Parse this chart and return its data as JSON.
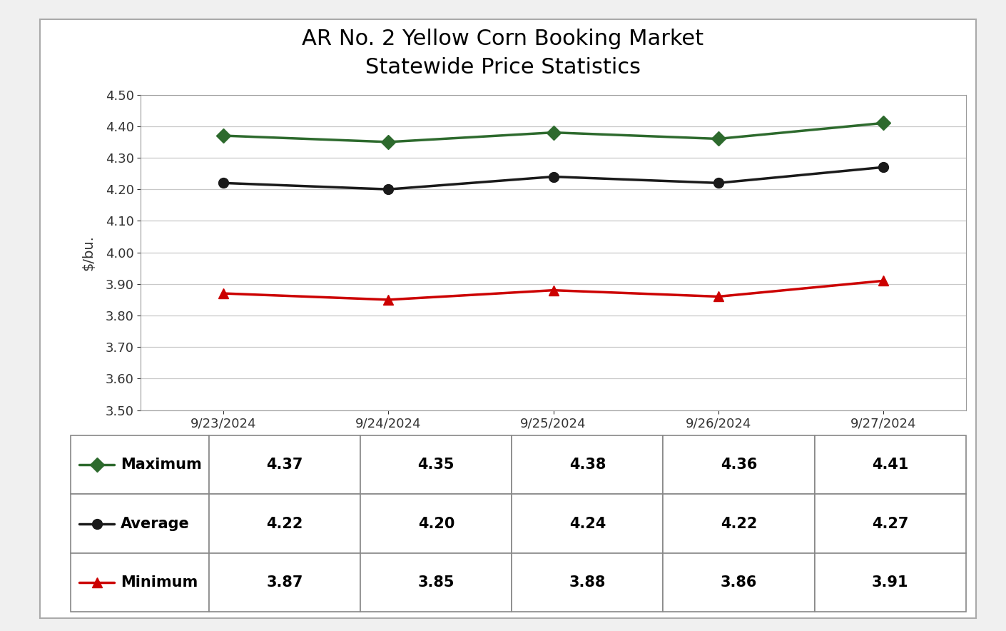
{
  "title_line1": "AR No. 2 Yellow Corn Booking Market",
  "title_line2": "Statewide Price Statistics",
  "ylabel": "$/bu.",
  "dates": [
    "9/23/2024",
    "9/24/2024",
    "9/25/2024",
    "9/26/2024",
    "9/27/2024"
  ],
  "maximum": [
    4.37,
    4.35,
    4.38,
    4.36,
    4.41
  ],
  "average": [
    4.22,
    4.2,
    4.24,
    4.22,
    4.27
  ],
  "minimum": [
    3.87,
    3.85,
    3.88,
    3.86,
    3.91
  ],
  "max_color": "#2d6a2d",
  "avg_color": "#1a1a1a",
  "min_color": "#cc0000",
  "ylim": [
    3.5,
    4.5
  ],
  "yticks": [
    3.5,
    3.6,
    3.7,
    3.8,
    3.9,
    4.0,
    4.1,
    4.2,
    4.3,
    4.4,
    4.5
  ],
  "background_color": "#f0f0f0",
  "plot_bg_color": "#ffffff",
  "outer_bg_color": "#ffffff",
  "title_fontsize": 22,
  "axis_label_fontsize": 14,
  "tick_fontsize": 13,
  "table_fontsize": 15,
  "line_width": 2.5,
  "marker_size": 10,
  "row_labels": [
    "Maximum",
    "Average",
    "Minimum"
  ],
  "row_markers": [
    "D",
    "o",
    "^"
  ]
}
